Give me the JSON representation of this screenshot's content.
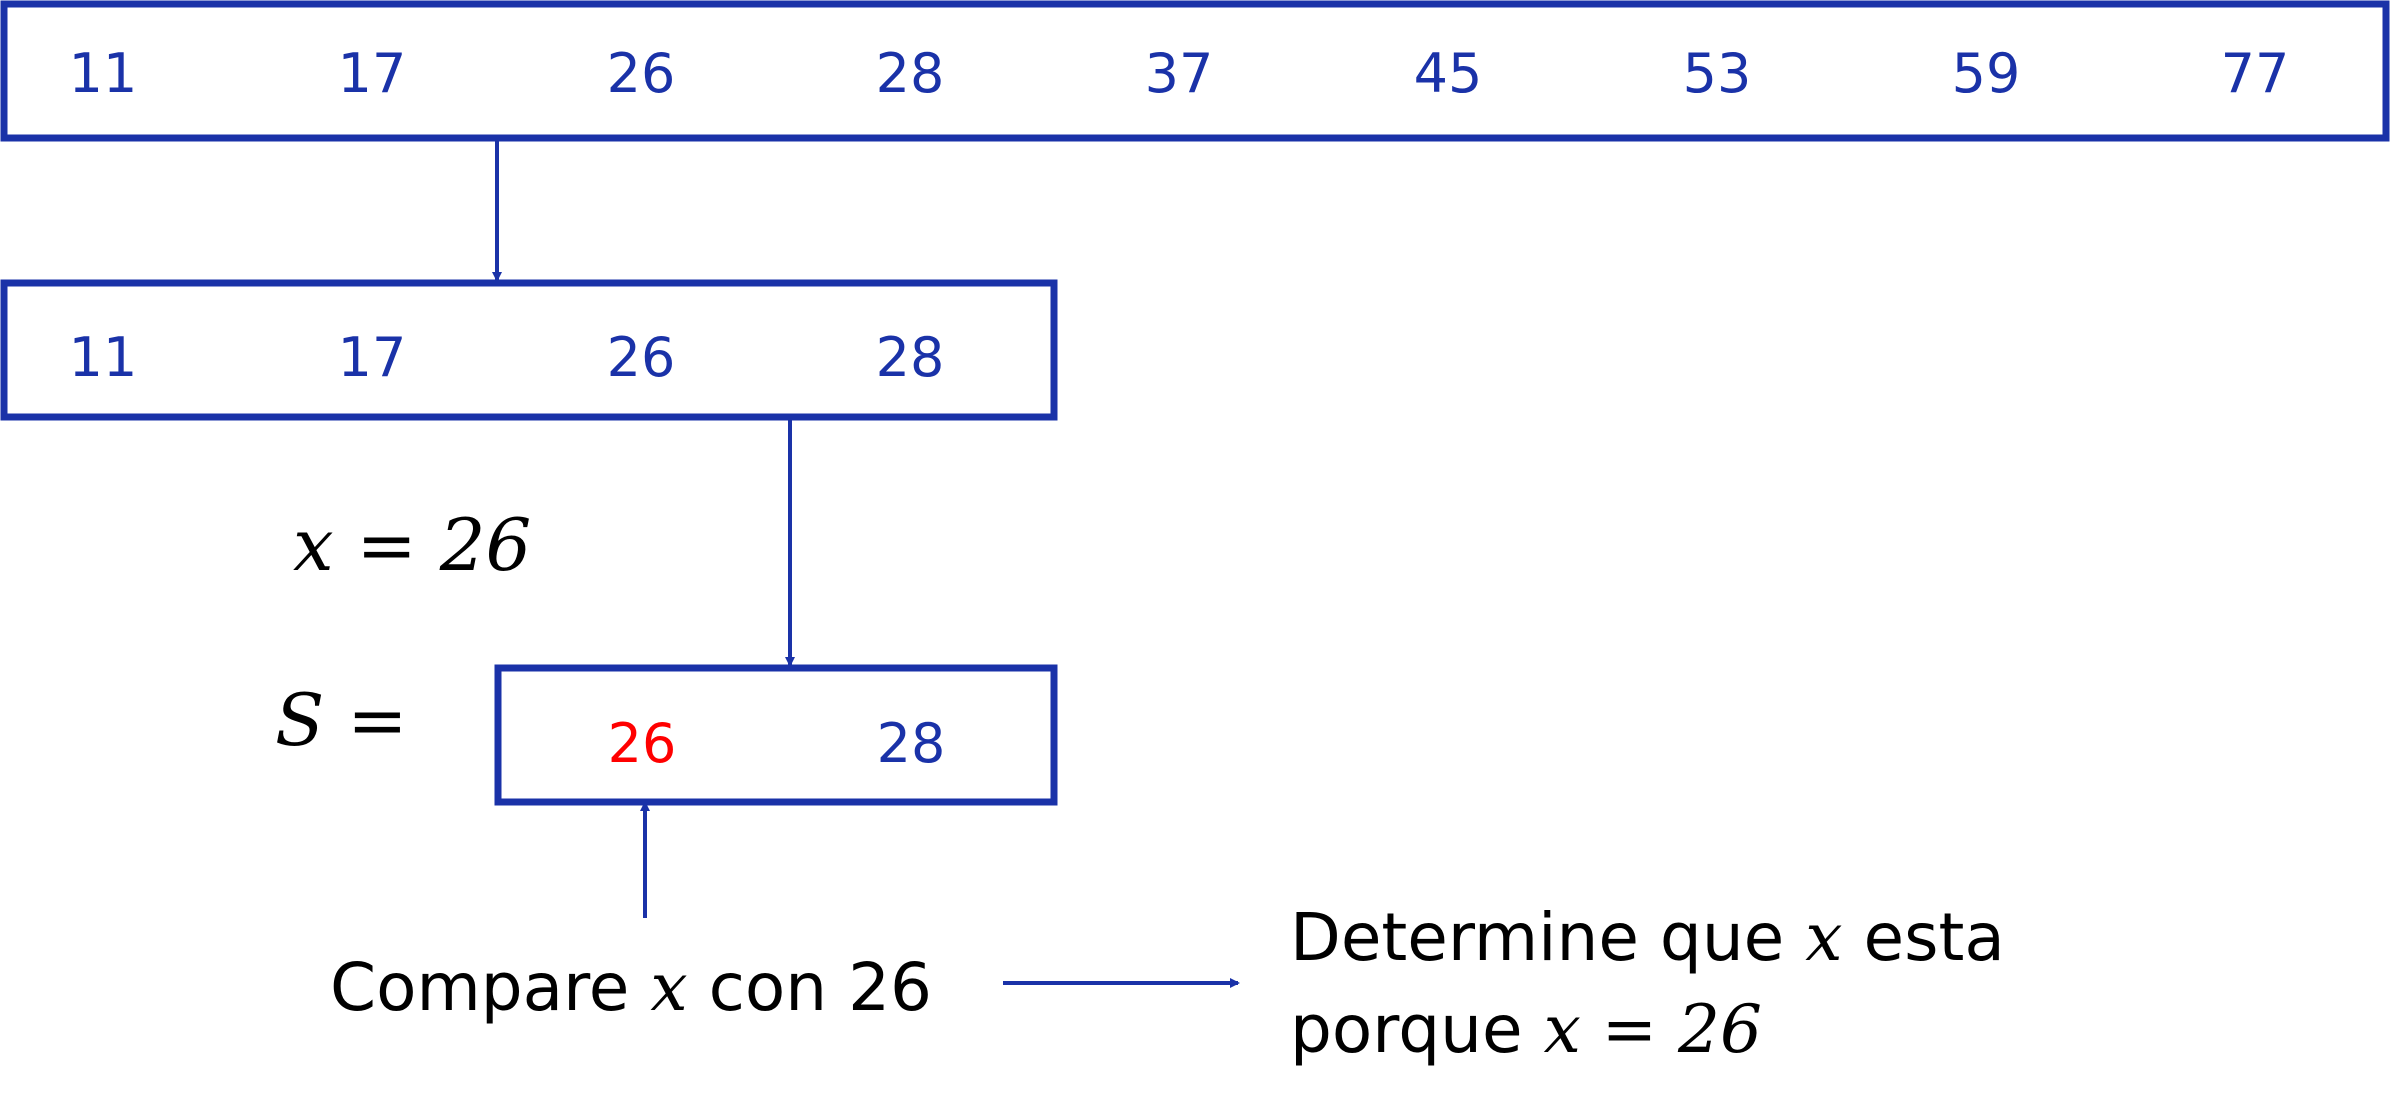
{
  "colors": {
    "primary": "#1a32a8",
    "highlight": "#ff0000",
    "text": "#000000"
  },
  "array_full": {
    "values": [
      "11",
      "17",
      "26",
      "28",
      "37",
      "45",
      "53",
      "59",
      "77"
    ]
  },
  "array_half": {
    "values": [
      "11",
      "17",
      "26",
      "28"
    ]
  },
  "array_s": {
    "label": "S =",
    "values": [
      "26",
      "28"
    ],
    "highlight_index": 0
  },
  "target": {
    "expression": "x = 26"
  },
  "compare": {
    "prefix": "Compare ",
    "variable": "x",
    "suffix": " con 26"
  },
  "result": {
    "line1_prefix": "Determine que ",
    "line1_variable": "x",
    "line1_suffix": " esta",
    "line2_prefix": "porque  ",
    "line2_expression": "x = 26"
  }
}
